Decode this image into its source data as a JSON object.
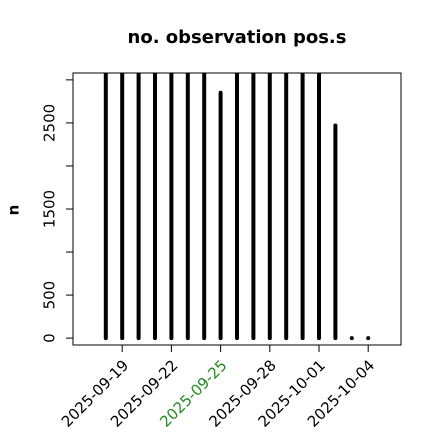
{
  "chart_data": {
    "type": "spike",
    "title": "no. observation pos.s",
    "y_label": "n",
    "x": [
      "2025-09-18",
      "2025-09-19",
      "2025-09-20",
      "2025-09-21",
      "2025-09-22",
      "2025-09-23",
      "2025-09-24",
      "2025-09-25",
      "2025-09-26",
      "2025-09-27",
      "2025-09-28",
      "2025-09-29",
      "2025-09-30",
      "2025-10-01",
      "2025-10-02",
      "2025-10-03",
      "2025-10-04"
    ],
    "values": [
      3080,
      3080,
      3080,
      3080,
      3080,
      3080,
      3080,
      2850,
      3080,
      3080,
      3080,
      3080,
      3080,
      3080,
      2470,
      0,
      0
    ],
    "color": "#000000",
    "xlim": [
      "2025-09-16",
      "2025-10-06"
    ],
    "xticks": [
      "2025-09-19",
      "2025-09-22",
      "2025-09-25",
      "2025-09-28",
      "2025-10-01",
      "2025-10-04"
    ],
    "xtick_colors": [
      "#000000",
      "#000000",
      "#228b22",
      "#000000",
      "#000000",
      "#000000"
    ],
    "ylim": [
      -80,
      3080
    ],
    "yticks": [
      0,
      500,
      1500,
      2500
    ],
    "yminor_ticks": [
      1000,
      2000,
      3000
    ]
  }
}
